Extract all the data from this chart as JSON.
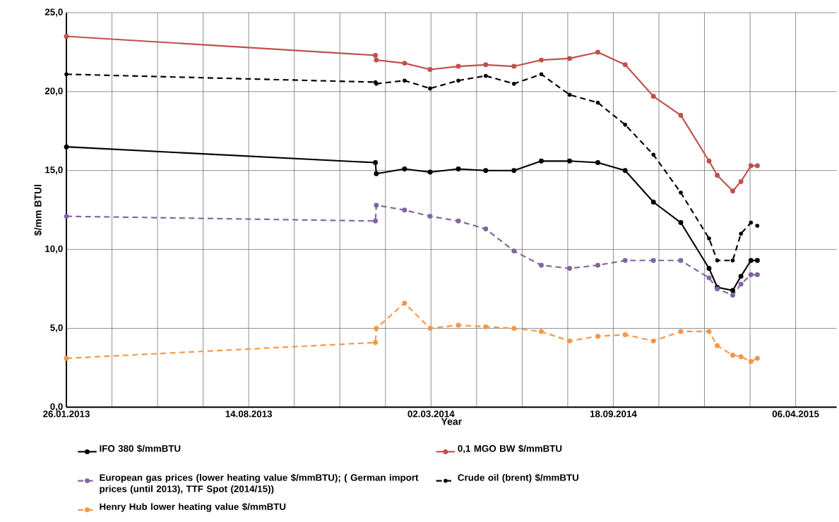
{
  "chart_data": {
    "type": "line",
    "xlabel": "Year",
    "ylabel": "$/mm BTUl",
    "xlim": [
      "2013-01-26",
      "2015-05-21"
    ],
    "ylim": [
      0,
      25
    ],
    "xticks": [
      {
        "value": "2013-01-26",
        "label": "26.01.2013"
      },
      {
        "value": "2013-03-17",
        "label": null
      },
      {
        "value": "2013-05-06",
        "label": null
      },
      {
        "value": "2013-06-25",
        "label": null
      },
      {
        "value": "2013-08-14",
        "label": "14.08.2013"
      },
      {
        "value": "2013-10-03",
        "label": null
      },
      {
        "value": "2013-11-22",
        "label": null
      },
      {
        "value": "2014-01-11",
        "label": null
      },
      {
        "value": "2014-03-02",
        "label": "02.03.2014"
      },
      {
        "value": "2014-04-21",
        "label": null
      },
      {
        "value": "2014-06-10",
        "label": null
      },
      {
        "value": "2014-07-30",
        "label": null
      },
      {
        "value": "2014-09-18",
        "label": "18.09.2014"
      },
      {
        "value": "2014-11-07",
        "label": null
      },
      {
        "value": "2014-12-27",
        "label": null
      },
      {
        "value": "2015-02-15",
        "label": null
      },
      {
        "value": "2015-04-06",
        "label": "06.04.2015"
      }
    ],
    "yticks": [
      {
        "value": 0,
        "label": "0,0"
      },
      {
        "value": 5,
        "label": "5,0"
      },
      {
        "value": 10,
        "label": "10,0"
      },
      {
        "value": 15,
        "label": "15,0"
      },
      {
        "value": 20,
        "label": "20,0"
      },
      {
        "value": 25,
        "label": "25,0"
      }
    ],
    "x": [
      "2013-01-26",
      "2013-12-31",
      "2014-01-01",
      "2014-02-01",
      "2014-03-01",
      "2014-04-01",
      "2014-05-01",
      "2014-06-01",
      "2014-07-01",
      "2014-08-01",
      "2014-09-01",
      "2014-10-01",
      "2014-11-01",
      "2014-12-01",
      "2015-01-01",
      "2015-01-10",
      "2015-01-27",
      "2015-02-05",
      "2015-02-16",
      "2015-02-23"
    ],
    "grid": true,
    "legend": "bottom",
    "marker": "circle",
    "series": [
      {
        "name": "IFO 380 $/mmBTU",
        "color": "#000000",
        "line_style": "solid",
        "values": [
          16.5,
          15.5,
          14.8,
          15.1,
          14.9,
          15.1,
          15.0,
          15.0,
          15.6,
          15.6,
          15.5,
          15.0,
          13.0,
          11.7,
          8.8,
          7.6,
          7.4,
          8.3,
          9.3,
          9.3
        ]
      },
      {
        "name": "0,1 MGO BW $/mmBTU",
        "color": "#c0504d",
        "line_style": "solid",
        "values": [
          23.5,
          22.3,
          22.0,
          21.8,
          21.4,
          21.6,
          21.7,
          21.6,
          22.0,
          22.1,
          22.5,
          21.7,
          19.7,
          18.5,
          15.6,
          14.7,
          13.7,
          14.3,
          15.3,
          15.3
        ]
      },
      {
        "name": "European gas prices (lower heating value $/mmBTU); ( German import prices (until 2013), TTF Spot (2014/15))",
        "color": "#8064a2",
        "line_style": "dashed",
        "values": [
          12.1,
          11.8,
          12.8,
          12.5,
          12.1,
          11.8,
          11.3,
          9.9,
          9.0,
          8.8,
          9.0,
          9.3,
          9.3,
          9.3,
          8.2,
          7.5,
          7.1,
          7.8,
          8.4,
          8.4
        ]
      },
      {
        "name": "Crude oil (brent) $/mmBTU",
        "color": "#000000",
        "line_style": "dashed",
        "values": [
          21.1,
          20.6,
          20.5,
          20.7,
          20.2,
          20.7,
          21.0,
          20.5,
          21.1,
          19.8,
          19.3,
          17.9,
          16.0,
          13.6,
          10.7,
          9.3,
          9.3,
          11.0,
          11.7,
          11.5
        ]
      },
      {
        "name": "Henry Hub lower heating value $/mmBTU",
        "color": "#f79646",
        "line_style": "dashed",
        "values": [
          3.1,
          4.1,
          5.0,
          6.6,
          5.0,
          5.2,
          5.1,
          5.0,
          4.8,
          4.2,
          4.5,
          4.6,
          4.2,
          4.8,
          4.8,
          3.9,
          3.3,
          3.2,
          2.9,
          3.1
        ]
      }
    ]
  }
}
